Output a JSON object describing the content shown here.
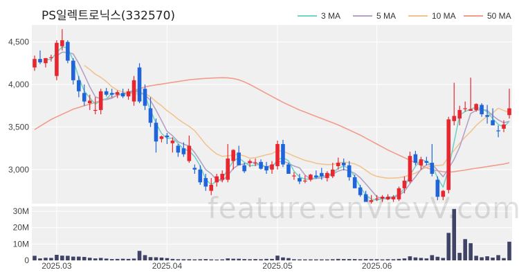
{
  "title": "PS일렉트로닉스(332570)",
  "watermark": "feature.enVievV.com",
  "colors": {
    "up": "#e8262f",
    "down": "#1f64d8",
    "ma3": "#6fd3c8",
    "ma5": "#b3a1c6",
    "ma10": "#f2c38f",
    "ma50": "#f29b8c",
    "volume": "#3f4466",
    "grid": "#e6e6e6",
    "panel": "#ffffff",
    "bg": "#eeeeee"
  },
  "legend": [
    {
      "label": "3 MA",
      "color_key": "ma3"
    },
    {
      "label": "5 MA",
      "color_key": "ma5"
    },
    {
      "label": "10 MA",
      "color_key": "ma10"
    },
    {
      "label": "50 MA",
      "color_key": "ma50"
    }
  ],
  "chart_data": {
    "type": "candlestick",
    "price_axis": {
      "ticks": [
        3000,
        3500,
        4000,
        4500
      ],
      "tick_labels": [
        "3,000",
        "3,500",
        "4,000",
        "4,500"
      ],
      "range": [
        2600,
        4700
      ]
    },
    "volume_axis": {
      "ticks": [
        0,
        10000000,
        20000000,
        30000000
      ],
      "tick_labels": [
        "0",
        "10M",
        "20M",
        "30M"
      ],
      "range": [
        0,
        33000000
      ]
    },
    "x_tick_labels": [
      {
        "index": 4,
        "label": "2025.03"
      },
      {
        "index": 24,
        "label": "2025.04"
      },
      {
        "index": 44,
        "label": "2025.05"
      },
      {
        "index": 62,
        "label": "2025.06"
      }
    ],
    "ohlc": [
      [
        4200,
        4340,
        4160,
        4300
      ],
      [
        4300,
        4400,
        4240,
        4260
      ],
      [
        4250,
        4310,
        4200,
        4310
      ],
      [
        4310,
        4350,
        4270,
        4320
      ],
      [
        4100,
        4520,
        4050,
        4490
      ],
      [
        4450,
        4650,
        4400,
        4520
      ],
      [
        4500,
        4520,
        4250,
        4280
      ],
      [
        4280,
        4310,
        4000,
        4050
      ],
      [
        4050,
        4100,
        3850,
        3920
      ],
      [
        3900,
        4000,
        3750,
        3800
      ],
      [
        3780,
        3880,
        3700,
        3810
      ],
      [
        3700,
        3850,
        3650,
        3700
      ],
      [
        3700,
        3950,
        3650,
        3920
      ],
      [
        3920,
        3960,
        3860,
        3880
      ],
      [
        3900,
        3950,
        3850,
        3880
      ],
      [
        3880,
        3930,
        3840,
        3910
      ],
      [
        3900,
        3950,
        3840,
        3860
      ],
      [
        3860,
        3950,
        3820,
        3920
      ],
      [
        3800,
        4100,
        3750,
        4050
      ],
      [
        4200,
        4250,
        3780,
        3800
      ],
      [
        3950,
        4000,
        3700,
        3750
      ],
      [
        3720,
        3850,
        3500,
        3550
      ],
      [
        3550,
        3600,
        3200,
        3330
      ],
      [
        3360,
        3400,
        3320,
        3390
      ],
      [
        3400,
        3430,
        3300,
        3380
      ],
      [
        3310,
        3380,
        3200,
        3340
      ],
      [
        3280,
        3300,
        3150,
        3200
      ],
      [
        3250,
        3320,
        3150,
        3180
      ],
      [
        3100,
        3400,
        3080,
        3280
      ],
      [
        3020,
        3060,
        2950,
        3000
      ],
      [
        3000,
        3050,
        2820,
        2850
      ],
      [
        2900,
        2950,
        2750,
        2800
      ],
      [
        2750,
        2900,
        2700,
        2820
      ],
      [
        2850,
        2950,
        2800,
        2920
      ],
      [
        2880,
        2990,
        2850,
        2950
      ],
      [
        2880,
        3300,
        2850,
        3130
      ],
      [
        3100,
        3240,
        3000,
        3230
      ],
      [
        3200,
        3280,
        3050,
        3050
      ],
      [
        3050,
        3080,
        2960,
        2980
      ],
      [
        3080,
        3120,
        3030,
        3100
      ],
      [
        3080,
        3130,
        3040,
        3080
      ],
      [
        3090,
        3120,
        3000,
        3010
      ],
      [
        3040,
        3090,
        2950,
        2990
      ],
      [
        3000,
        3100,
        2950,
        3060
      ],
      [
        3040,
        3340,
        3000,
        3300
      ],
      [
        3300,
        3350,
        3030,
        3060
      ],
      [
        3060,
        3080,
        2950,
        2950
      ],
      [
        2920,
        2970,
        2880,
        2930
      ],
      [
        2900,
        2950,
        2830,
        2860
      ],
      [
        2860,
        2930,
        2840,
        2870
      ],
      [
        2880,
        2950,
        2860,
        2940
      ],
      [
        2930,
        2990,
        2890,
        2910
      ],
      [
        2960,
        3020,
        2880,
        2920
      ],
      [
        2900,
        2980,
        2860,
        2960
      ],
      [
        2920,
        3080,
        2900,
        3000
      ],
      [
        3040,
        3140,
        3000,
        3080
      ],
      [
        3080,
        3130,
        2990,
        3050
      ],
      [
        3050,
        3100,
        2870,
        2910
      ],
      [
        2910,
        2940,
        2780,
        2780
      ],
      [
        2790,
        2820,
        2680,
        2700
      ],
      [
        2710,
        2750,
        2620,
        2620
      ],
      [
        2620,
        2700,
        2600,
        2640
      ],
      [
        2660,
        2700,
        2630,
        2660
      ],
      [
        2660,
        2700,
        2620,
        2680
      ],
      [
        2650,
        2710,
        2640,
        2680
      ],
      [
        2650,
        2700,
        2620,
        2680
      ],
      [
        2650,
        2800,
        2630,
        2780
      ],
      [
        2780,
        2920,
        2720,
        2870
      ],
      [
        2860,
        3210,
        2840,
        3160
      ],
      [
        3180,
        3220,
        3050,
        3080
      ],
      [
        3050,
        3150,
        3000,
        3120
      ],
      [
        3100,
        3150,
        3050,
        3080
      ],
      [
        3080,
        3300,
        2920,
        2950
      ],
      [
        2880,
        2920,
        2640,
        2680
      ],
      [
        2680,
        2760,
        2640,
        2750
      ],
      [
        2760,
        3620,
        2720,
        3590
      ],
      [
        3570,
        4020,
        3520,
        3630
      ],
      [
        3600,
        3750,
        3520,
        3700
      ],
      [
        3710,
        3800,
        3680,
        3720
      ],
      [
        3690,
        4080,
        3690,
        3710
      ],
      [
        3700,
        3780,
        3680,
        3770
      ],
      [
        3760,
        3780,
        3620,
        3650
      ],
      [
        3640,
        3760,
        3540,
        3620
      ],
      [
        3580,
        3720,
        3520,
        3520
      ],
      [
        3460,
        3520,
        3380,
        3450
      ],
      [
        3480,
        3580,
        3440,
        3530
      ],
      [
        3640,
        3950,
        3600,
        3720
      ]
    ],
    "volume": [
      2800000,
      1200000,
      1600000,
      1500000,
      3400000,
      2900000,
      2800000,
      2300000,
      2300000,
      2100000,
      1600000,
      1200000,
      1500000,
      1100000,
      800000,
      900000,
      1000000,
      900000,
      1100000,
      5800000,
      3200000,
      2000000,
      1900000,
      1700000,
      1400000,
      900000,
      700000,
      700000,
      700000,
      600000,
      700000,
      800000,
      600000,
      500000,
      600000,
      1200000,
      1000000,
      1000000,
      800000,
      700000,
      800000,
      700000,
      900000,
      900000,
      2900000,
      1800000,
      1400000,
      700000,
      600000,
      600000,
      600000,
      600000,
      600000,
      600000,
      700000,
      900000,
      800000,
      800000,
      800000,
      700000,
      800000,
      700000,
      700000,
      600000,
      700000,
      700000,
      900000,
      1200000,
      2500000,
      1800000,
      1500000,
      1200000,
      3200000,
      2200000,
      1500000,
      16800000,
      31400000,
      4600000,
      13000000,
      10500000,
      2800000,
      1900000,
      2500000,
      1700000,
      3200000,
      1400000,
      11400000
    ],
    "ma3": [
      null,
      null,
      4290,
      4297,
      4373,
      4443,
      4430,
      4283,
      4083,
      3923,
      3843,
      3770,
      3810,
      3833,
      3893,
      3890,
      3883,
      3897,
      3943,
      3923,
      3867,
      3700,
      3543,
      3423,
      3367,
      3370,
      3307,
      3240,
      3220,
      3153,
      3043,
      2883,
      2823,
      2863,
      2897,
      3000,
      3103,
      3137,
      3087,
      3043,
      3053,
      3063,
      3027,
      3020,
      3117,
      3140,
      3103,
      2980,
      2913,
      2887,
      2890,
      2907,
      2923,
      2930,
      2960,
      3013,
      3043,
      3013,
      2913,
      2797,
      2700,
      2653,
      2640,
      2660,
      2673,
      2680,
      2713,
      2777,
      2937,
      3037,
      3120,
      3093,
      3050,
      2903,
      2793,
      3007,
      3323,
      3640,
      3683,
      3710,
      3733,
      3710,
      3680,
      3597,
      3530,
      3500,
      3567
    ],
    "ma5": [
      null,
      null,
      null,
      null,
      4336,
      4380,
      4376,
      4360,
      4248,
      4114,
      3972,
      3856,
      3830,
      3822,
      3838,
      3878,
      3890,
      3890,
      3924,
      3908,
      3876,
      3812,
      3698,
      3574,
      3450,
      3398,
      3328,
      3298,
      3276,
      3200,
      3102,
      3000,
      2950,
      2878,
      2868,
      2930,
      3014,
      3056,
      3066,
      3078,
      3088,
      3044,
      3034,
      3046,
      3088,
      3098,
      3074,
      3042,
      3020,
      2934,
      2890,
      2896,
      2900,
      2920,
      2946,
      2982,
      3002,
      2984,
      2956,
      2904,
      2832,
      2756,
      2680,
      2660,
      2656,
      2672,
      2696,
      2744,
      2834,
      2914,
      3002,
      3056,
      3062,
      2992,
      2916,
      3012,
      3120,
      3264,
      3462,
      3660,
      3696,
      3706,
      3696,
      3632,
      3584,
      3550,
      3568
    ],
    "ma10": [
      null,
      null,
      null,
      null,
      null,
      null,
      null,
      null,
      null,
      4225,
      4176,
      4121,
      4084,
      4034,
      3973,
      3934,
      3912,
      3901,
      3894,
      3886,
      3893,
      3856,
      3797,
      3750,
      3692,
      3646,
      3593,
      3548,
      3508,
      3457,
      3377,
      3295,
      3234,
      3183,
      3155,
      3161,
      3174,
      3177,
      3160,
      3132,
      3140,
      3157,
      3174,
      3188,
      3223,
      3216,
      3188,
      3158,
      3133,
      3107,
      3093,
      3074,
      3065,
      3058,
      3060,
      3078,
      3088,
      3081,
      3066,
      3037,
      2992,
      2946,
      2920,
      2908,
      2899,
      2900,
      2904,
      2916,
      2936,
      2958,
      2996,
      3027,
      3047,
      3047,
      3055,
      3150,
      3226,
      3308,
      3383,
      3446,
      3519,
      3576,
      3626,
      3666,
      3722,
      3693,
      3674
    ],
    "ma50": [
      3470,
      3510,
      3550,
      3590,
      3620,
      3650,
      3680,
      3710,
      3730,
      3750,
      3770,
      3790,
      3810,
      3830,
      3850,
      3870,
      3890,
      3910,
      3930,
      3950,
      3970,
      3985,
      3995,
      4005,
      4015,
      4025,
      4035,
      4045,
      4055,
      4062,
      4067,
      4072,
      4075,
      4078,
      4080,
      4078,
      4070,
      4055,
      4030,
      4000,
      3965,
      3930,
      3895,
      3860,
      3825,
      3790,
      3760,
      3730,
      3700,
      3675,
      3650,
      3625,
      3600,
      3575,
      3550,
      3525,
      3495,
      3465,
      3435,
      3405,
      3370,
      3335,
      3300,
      3265,
      3230,
      3200,
      3170,
      3140,
      3110,
      3080,
      3050,
      3020,
      3000,
      2985,
      2975,
      2970,
      2975,
      2985,
      2995,
      3005,
      3015,
      3025,
      3035,
      3045,
      3055,
      3065,
      3080
    ]
  }
}
